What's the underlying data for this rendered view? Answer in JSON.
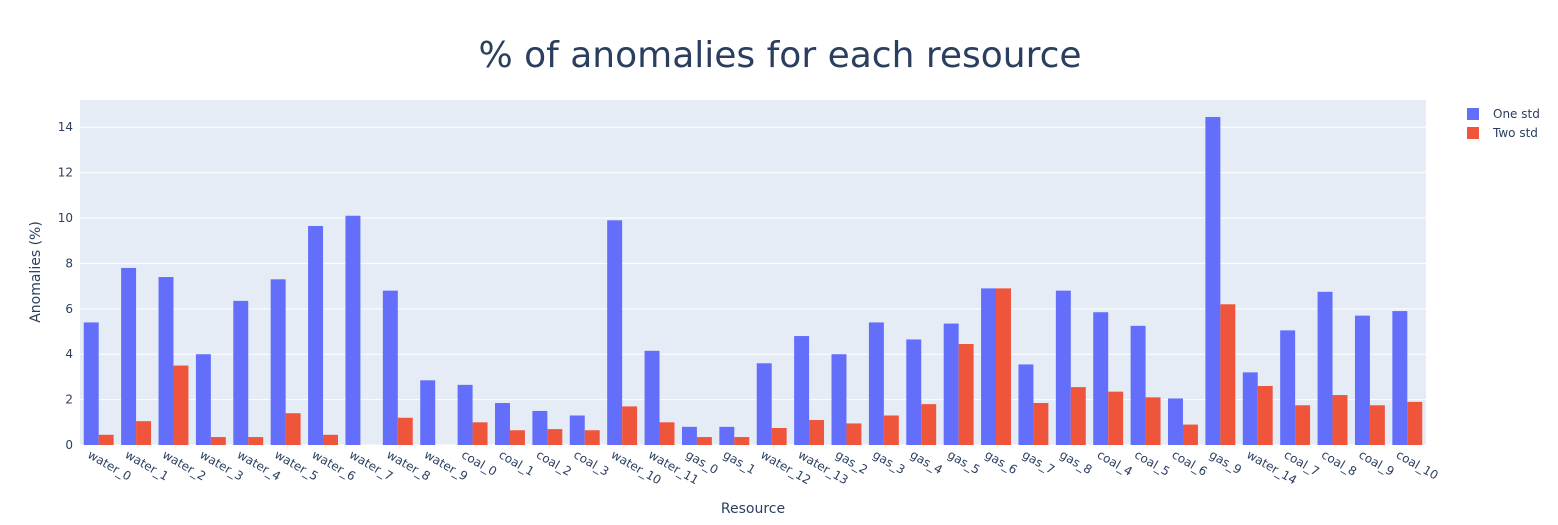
{
  "chart_data": {
    "type": "bar",
    "title": "% of anomalies for each resource",
    "xlabel": "Resource",
    "ylabel": "Anomalies (%)",
    "ylim": [
      0,
      15.2
    ],
    "yticks": [
      0,
      2,
      4,
      6,
      8,
      10,
      12,
      14
    ],
    "grid": true,
    "legend_position": "top-right",
    "categories": [
      "water_0",
      "water_1",
      "water_2",
      "water_3",
      "water_4",
      "water_5",
      "water_6",
      "water_7",
      "water_8",
      "water_9",
      "coal_0",
      "coal_1",
      "coal_2",
      "coal_3",
      "water_10",
      "water_11",
      "gas_0",
      "gas_1",
      "water_12",
      "water_13",
      "gas_2",
      "gas_3",
      "gas_4",
      "gas_5",
      "gas_6",
      "gas_7",
      "gas_8",
      "coal_4",
      "coal_5",
      "coal_6",
      "gas_9",
      "water_14",
      "coal_7",
      "coal_8",
      "coal_9",
      "coal_10"
    ],
    "series": [
      {
        "name": "One std",
        "color": "#636efa",
        "values": [
          5.4,
          7.8,
          7.4,
          4.0,
          6.35,
          7.3,
          9.65,
          10.1,
          6.8,
          2.85,
          2.65,
          1.85,
          1.5,
          1.3,
          9.9,
          4.15,
          0.8,
          0.8,
          3.6,
          4.8,
          4.0,
          5.4,
          4.65,
          5.35,
          6.9,
          3.55,
          6.8,
          5.85,
          5.25,
          2.05,
          14.45,
          3.2,
          5.05,
          6.75,
          5.7,
          5.9
        ]
      },
      {
        "name": "Two std",
        "color": "#ef553b",
        "values": [
          0.45,
          1.05,
          3.5,
          0.35,
          0.35,
          1.4,
          0.45,
          0,
          1.2,
          0,
          1.0,
          0.65,
          0.7,
          0.65,
          1.7,
          1.0,
          0.35,
          0.35,
          0.75,
          1.1,
          0.95,
          1.3,
          1.8,
          4.45,
          6.9,
          1.85,
          2.55,
          2.35,
          2.1,
          0.9,
          6.2,
          2.6,
          1.75,
          2.2,
          1.75,
          1.9
        ]
      }
    ],
    "colors": {
      "plot_bg": "#e5ecf6",
      "grid": "#ffffff",
      "text": "#2a3f5f"
    }
  }
}
